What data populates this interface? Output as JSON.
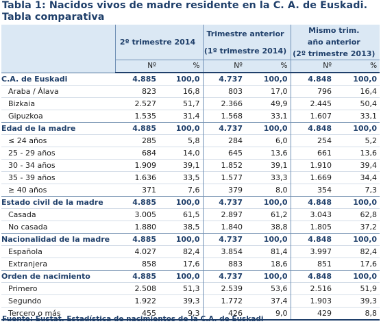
{
  "title_line1": "Tabla 1: Nacidos vivos de madre residente en la C. A. de Euskadi.",
  "title_line2": "Tabla comparativa",
  "header": {
    "groups": [
      {
        "line1": "2º trimestre 2014",
        "line2": ""
      },
      {
        "line1": "Trimestre anterior",
        "line2": "(1º trimestre 2014)"
      },
      {
        "line1": "Mismo trim. año anterior",
        "line2": "(2º trimestre 2013)"
      }
    ],
    "n_label": "Nº",
    "pct_label": "%"
  },
  "rows": [
    {
      "label": "C.A. de Euskadi",
      "type": "section",
      "values": [
        "4.885",
        "100,0",
        "4.737",
        "100,0",
        "4.848",
        "100,0"
      ]
    },
    {
      "label": "Araba / Álava",
      "type": "sub",
      "values": [
        "823",
        "16,8",
        "803",
        "17,0",
        "796",
        "16,4"
      ]
    },
    {
      "label": "Bizkaia",
      "type": "sub",
      "values": [
        "2.527",
        "51,7",
        "2.366",
        "49,9",
        "2.445",
        "50,4"
      ]
    },
    {
      "label": "Gipuzkoa",
      "type": "sub",
      "values": [
        "1.535",
        "31,4",
        "1.568",
        "33,1",
        "1.607",
        "33,1"
      ]
    },
    {
      "label": "Edad de la madre",
      "type": "section",
      "values": [
        "4.885",
        "100,0",
        "4.737",
        "100,0",
        "4.848",
        "100,0"
      ]
    },
    {
      "label": "≤ 24 años",
      "type": "sub",
      "values": [
        "285",
        "5,8",
        "284",
        "6,0",
        "254",
        "5,2"
      ]
    },
    {
      "label": "25 - 29 años",
      "type": "sub",
      "values": [
        "684",
        "14,0",
        "645",
        "13,6",
        "661",
        "13,6"
      ]
    },
    {
      "label": "30 - 34 años",
      "type": "sub",
      "values": [
        "1.909",
        "39,1",
        "1.852",
        "39,1",
        "1.910",
        "39,4"
      ]
    },
    {
      "label": "35 - 39 años",
      "type": "sub",
      "values": [
        "1.636",
        "33,5",
        "1.577",
        "33,3",
        "1.669",
        "34,4"
      ]
    },
    {
      "label": "≥ 40 años",
      "type": "sub",
      "values": [
        "371",
        "7,6",
        "379",
        "8,0",
        "354",
        "7,3"
      ]
    },
    {
      "label": "Estado civil de la madre",
      "type": "section",
      "values": [
        "4.885",
        "100,0",
        "4.737",
        "100,0",
        "4.848",
        "100,0"
      ]
    },
    {
      "label": "Casada",
      "type": "sub",
      "values": [
        "3.005",
        "61,5",
        "2.897",
        "61,2",
        "3.043",
        "62,8"
      ]
    },
    {
      "label": "No casada",
      "type": "sub",
      "values": [
        "1.880",
        "38,5",
        "1.840",
        "38,8",
        "1.805",
        "37,2"
      ]
    },
    {
      "label": "Nacionalidad de la madre",
      "type": "section",
      "values": [
        "4.885",
        "100,0",
        "4.737",
        "100,0",
        "4.848",
        "100,0"
      ]
    },
    {
      "label": "Española",
      "type": "sub",
      "values": [
        "4.027",
        "82,4",
        "3.854",
        "81,4",
        "3.997",
        "82,4"
      ]
    },
    {
      "label": "Extranjera",
      "type": "sub",
      "values": [
        "858",
        "17,6",
        "883",
        "18,6",
        "851",
        "17,6"
      ]
    },
    {
      "label": "Orden de nacimiento",
      "type": "section",
      "values": [
        "4.885",
        "100,0",
        "4.737",
        "100,0",
        "4.848",
        "100,0"
      ]
    },
    {
      "label": "Primero",
      "type": "sub",
      "values": [
        "2.508",
        "51,3",
        "2.539",
        "53,6",
        "2.516",
        "51,9"
      ]
    },
    {
      "label": "Segundo",
      "type": "sub",
      "values": [
        "1.922",
        "39,3",
        "1.772",
        "37,4",
        "1.903",
        "39,3"
      ]
    },
    {
      "label": "Tercero o más",
      "type": "sub",
      "values": [
        "455",
        "9,3",
        "426",
        "9,0",
        "429",
        "8,8"
      ]
    }
  ],
  "source": "Fuente: Eustat. Estadística de nacimientos de la C.A. de Euskadi",
  "colors": {
    "title": "#1f3f6a",
    "header_bg": "#dbe8f4",
    "rule": "#1f3f6a"
  }
}
